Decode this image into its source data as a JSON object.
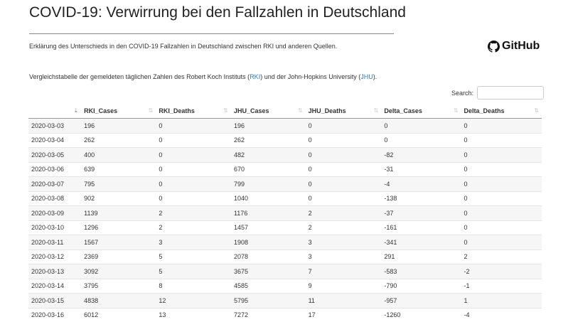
{
  "title": "COVID-19: Verwirrung bei den Fallzahlen in Deutschland",
  "description": "Erklärung des Unterschieds in den COVID-19 Fallzahlen in Deutschland zwischen RKI und anderen Quellen.",
  "github_label": "GitHub",
  "intro": {
    "before": "Vergleichstabelle der gemeldeten täglichen Zahlen des Robert Koch Instituts (",
    "rki": "RKI",
    "middle": ") und der John-Hopkins University (",
    "jhu": "JHU",
    "after": ")."
  },
  "search_label": "Search:",
  "search_value": "",
  "columns": [
    "",
    "RKI_Cases",
    "RKI_Deaths",
    "JHU_Cases",
    "JHU_Deaths",
    "Delta_Cases",
    "Delta_Deaths"
  ],
  "rows": [
    [
      "2020-03-03",
      "196",
      "0",
      "196",
      "0",
      "0",
      "0"
    ],
    [
      "2020-03-04",
      "262",
      "0",
      "262",
      "0",
      "0",
      "0"
    ],
    [
      "2020-03-05",
      "400",
      "0",
      "482",
      "0",
      "-82",
      "0"
    ],
    [
      "2020-03-06",
      "639",
      "0",
      "670",
      "0",
      "-31",
      "0"
    ],
    [
      "2020-03-07",
      "795",
      "0",
      "799",
      "0",
      "-4",
      "0"
    ],
    [
      "2020-03-08",
      "902",
      "0",
      "1040",
      "0",
      "-138",
      "0"
    ],
    [
      "2020-03-09",
      "1139",
      "2",
      "1176",
      "2",
      "-37",
      "0"
    ],
    [
      "2020-03-10",
      "1296",
      "2",
      "1457",
      "2",
      "-161",
      "0"
    ],
    [
      "2020-03-11",
      "1567",
      "3",
      "1908",
      "3",
      "-341",
      "0"
    ],
    [
      "2020-03-12",
      "2369",
      "5",
      "2078",
      "3",
      "291",
      "2"
    ],
    [
      "2020-03-13",
      "3092",
      "5",
      "3675",
      "7",
      "-583",
      "-2"
    ],
    [
      "2020-03-14",
      "3795",
      "8",
      "4585",
      "9",
      "-790",
      "-1"
    ],
    [
      "2020-03-15",
      "4838",
      "12",
      "5795",
      "11",
      "-957",
      "1"
    ],
    [
      "2020-03-16",
      "6012",
      "13",
      "7272",
      "17",
      "-1260",
      "-4"
    ]
  ]
}
